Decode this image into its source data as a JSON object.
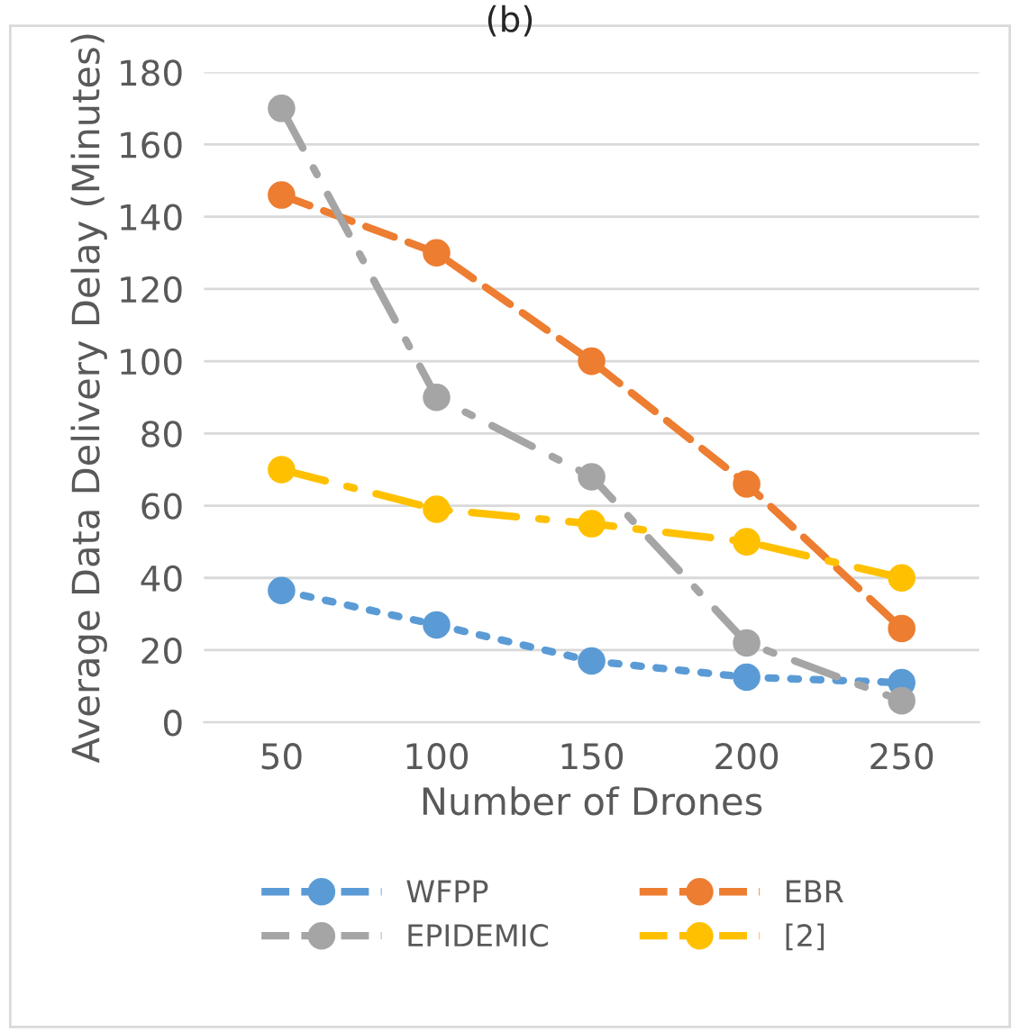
{
  "chart_data": {
    "type": "line",
    "title": "(b)",
    "xlabel": "Number of Drones",
    "ylabel": "Average Data Delivery Delay (Minutes)",
    "categories": [
      "50",
      "100",
      "150",
      "200",
      "250"
    ],
    "series": [
      {
        "name": "WFPP",
        "color": "#5b9bd5",
        "line_style": "dotted",
        "values": [
          36.5,
          27,
          17,
          12.5,
          11
        ]
      },
      {
        "name": "EBR",
        "color": "#ed7d31",
        "line_style": "dashed",
        "values": [
          146,
          130,
          100,
          66,
          26
        ]
      },
      {
        "name": "EPIDEMIC",
        "color": "#a5a5a5",
        "line_style": "dashdot",
        "values": [
          170,
          90,
          68,
          22,
          6
        ]
      },
      {
        "name": "[2]",
        "color": "#ffc000",
        "line_style": "dashdot",
        "values": [
          70,
          59,
          55,
          50,
          40
        ]
      }
    ],
    "ylim": [
      0,
      180
    ],
    "yticks": [
      0,
      20,
      40,
      60,
      80,
      100,
      120,
      140,
      160,
      180
    ],
    "grid": "y",
    "marker": "circle",
    "legend": "bottom"
  }
}
